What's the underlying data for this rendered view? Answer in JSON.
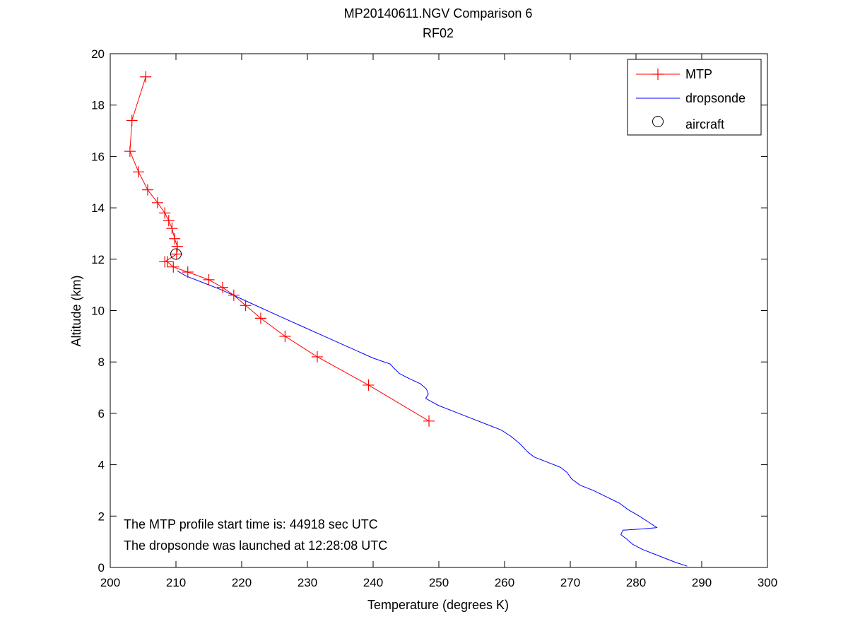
{
  "chart_data": {
    "type": "line",
    "title": "MP20140611.NGV Comparison 6",
    "subtitle": "RF02",
    "xlabel": "Temperature (degrees K)",
    "ylabel": "Altitude (km)",
    "xlim": [
      200,
      300
    ],
    "ylim": [
      0,
      20
    ],
    "xticks": [
      200,
      210,
      220,
      230,
      240,
      250,
      260,
      270,
      280,
      290,
      300
    ],
    "yticks": [
      0,
      2,
      4,
      6,
      8,
      10,
      12,
      14,
      16,
      18,
      20
    ],
    "grid": false,
    "legend_position": "top-right",
    "legend": [
      {
        "name": "MTP",
        "style": "line-plus",
        "color": "#ff0000"
      },
      {
        "name": "dropsonde",
        "style": "line",
        "color": "#0000ff"
      },
      {
        "name": "aircraft",
        "style": "circle",
        "color": "#000000"
      }
    ],
    "series": [
      {
        "name": "MTP",
        "color": "#ff0000",
        "marker": "plus",
        "points": [
          [
            205.4,
            19.1
          ],
          [
            203.3,
            17.4
          ],
          [
            203.0,
            16.2
          ],
          [
            204.3,
            15.4
          ],
          [
            205.7,
            14.7
          ],
          [
            207.2,
            14.2
          ],
          [
            208.3,
            13.8
          ],
          [
            208.9,
            13.5
          ],
          [
            209.4,
            13.2
          ],
          [
            209.8,
            12.8
          ],
          [
            210.2,
            12.5
          ],
          [
            210.1,
            12.2
          ],
          [
            208.3,
            11.9
          ],
          [
            208.7,
            11.9
          ],
          [
            209.6,
            11.7
          ],
          [
            211.8,
            11.5
          ],
          [
            215.0,
            11.2
          ],
          [
            217.1,
            10.9
          ],
          [
            218.8,
            10.6
          ],
          [
            220.6,
            10.2
          ],
          [
            222.9,
            9.7
          ],
          [
            226.6,
            9.0
          ],
          [
            231.5,
            8.2
          ],
          [
            239.3,
            7.1
          ],
          [
            248.5,
            5.7
          ]
        ]
      },
      {
        "name": "dropsonde",
        "color": "#0000ff",
        "marker": "none",
        "points": [
          [
            210.2,
            11.55
          ],
          [
            211.5,
            11.35
          ],
          [
            214.0,
            11.1
          ],
          [
            217.0,
            10.8
          ],
          [
            220.0,
            10.45
          ],
          [
            223.0,
            10.1
          ],
          [
            226.0,
            9.75
          ],
          [
            229.5,
            9.35
          ],
          [
            233.0,
            8.95
          ],
          [
            236.5,
            8.55
          ],
          [
            240.0,
            8.15
          ],
          [
            242.6,
            7.92
          ],
          [
            243.2,
            7.75
          ],
          [
            244.0,
            7.55
          ],
          [
            245.5,
            7.35
          ],
          [
            247.2,
            7.15
          ],
          [
            248.1,
            6.95
          ],
          [
            248.4,
            6.75
          ],
          [
            248.0,
            6.58
          ],
          [
            248.7,
            6.48
          ],
          [
            250.0,
            6.3
          ],
          [
            252.5,
            6.05
          ],
          [
            255.0,
            5.8
          ],
          [
            257.5,
            5.55
          ],
          [
            259.5,
            5.35
          ],
          [
            261.0,
            5.1
          ],
          [
            262.4,
            4.8
          ],
          [
            263.5,
            4.5
          ],
          [
            264.5,
            4.3
          ],
          [
            266.5,
            4.1
          ],
          [
            268.5,
            3.9
          ],
          [
            269.5,
            3.7
          ],
          [
            270.2,
            3.45
          ],
          [
            271.5,
            3.2
          ],
          [
            273.5,
            3.0
          ],
          [
            275.5,
            2.75
          ],
          [
            277.5,
            2.5
          ],
          [
            278.8,
            2.25
          ],
          [
            280.5,
            2.0
          ],
          [
            282.0,
            1.75
          ],
          [
            283.2,
            1.55
          ],
          [
            281.0,
            1.5
          ],
          [
            278.0,
            1.45
          ],
          [
            277.7,
            1.28
          ],
          [
            278.6,
            1.1
          ],
          [
            279.5,
            0.9
          ],
          [
            281.0,
            0.7
          ],
          [
            283.5,
            0.45
          ],
          [
            286.0,
            0.2
          ],
          [
            287.8,
            0.05
          ]
        ]
      },
      {
        "name": "aircraft",
        "color": "#000000",
        "marker": "circle",
        "points": [
          [
            210.0,
            12.2
          ]
        ]
      }
    ],
    "annotations": [
      "The MTP profile start time is: 44918 sec UTC",
      "The dropsonde was launched at 12:28:08 UTC"
    ]
  }
}
